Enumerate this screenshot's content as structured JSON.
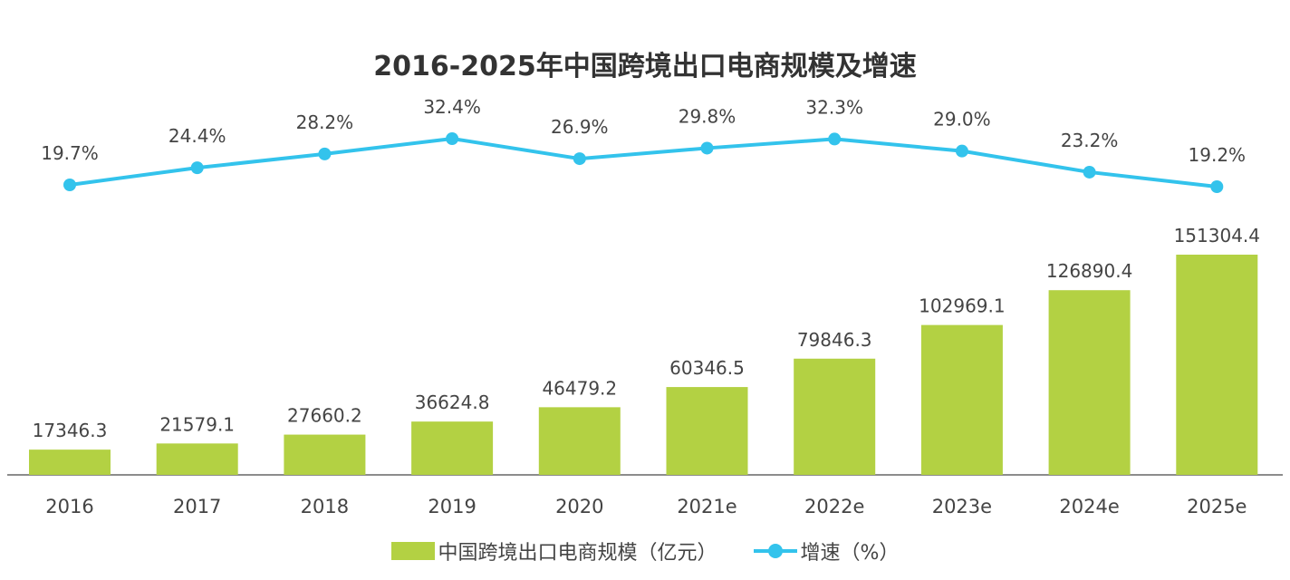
{
  "chart_data": {
    "type": "bar+line",
    "title": "2016-2025年中国跨境出口电商规模及增速",
    "categories": [
      "2016",
      "2017",
      "2018",
      "2019",
      "2020",
      "2021e",
      "2022e",
      "2023e",
      "2024e",
      "2025e"
    ],
    "series": [
      {
        "name": "中国跨境出口电商规模（亿元）",
        "type": "bar",
        "color": "#b3d143",
        "values": [
          17346.3,
          21579.1,
          27660.2,
          36624.8,
          46479.2,
          60346.5,
          79846.3,
          102969.1,
          126890.4,
          151304.4
        ],
        "labels": [
          "17346.3",
          "21579.1",
          "27660.2",
          "36624.8",
          "46479.2",
          "60346.5",
          "79846.3",
          "102969.1",
          "126890.4",
          "151304.4"
        ]
      },
      {
        "name": "增速（%）",
        "type": "line",
        "color": "#33c3ec",
        "values": [
          19.7,
          24.4,
          28.2,
          32.4,
          26.9,
          29.8,
          32.3,
          29.0,
          23.2,
          19.2
        ],
        "labels": [
          "19.7%",
          "24.4%",
          "28.2%",
          "32.4%",
          "26.9%",
          "29.8%",
          "32.3%",
          "29.0%",
          "23.2%",
          "19.2%"
        ]
      }
    ],
    "legend": "bottom",
    "grid": false
  }
}
